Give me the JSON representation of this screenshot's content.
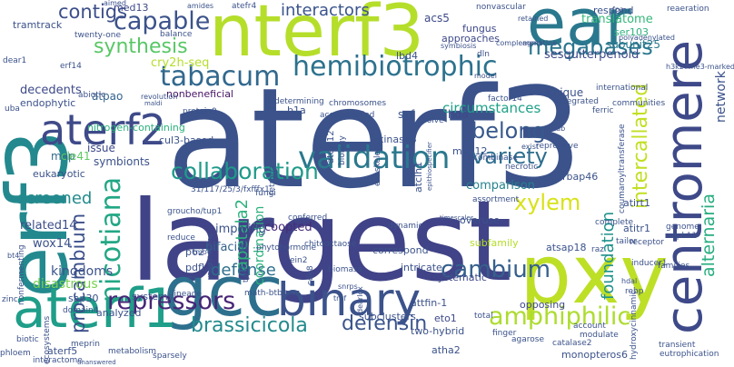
{
  "words": [
    {
      "text": "aterf3",
      "color": "#3b528b"
    },
    {
      "text": "largest",
      "color": "#404387"
    },
    {
      "text": "erf3",
      "color": "#23898e"
    },
    {
      "text": "nterf3",
      "color": "#b5de2b"
    },
    {
      "text": "centromere",
      "color": "#3e4989"
    },
    {
      "text": "pxy",
      "color": "#bddf26"
    },
    {
      "text": "binary",
      "color": "#3b528b"
    },
    {
      "text": "gcc",
      "color": "#2d708e"
    },
    {
      "text": "ear",
      "color": "#2a788e"
    },
    {
      "text": "aterf1",
      "color": "#1f9e89"
    },
    {
      "text": "aterf2",
      "color": "#3e4a89"
    },
    {
      "text": "validation",
      "color": "#2a788e"
    },
    {
      "text": "hemibiotrophic",
      "color": "#2c728e"
    },
    {
      "text": "capable",
      "color": "#3b528b"
    },
    {
      "text": "tabacum",
      "color": "#31688e"
    },
    {
      "text": "collaboration",
      "color": "#1f9a8a"
    },
    {
      "text": "nicotiana",
      "color": "#22a785"
    },
    {
      "text": "repressors",
      "color": "#482576"
    },
    {
      "text": "amphiphilic",
      "color": "#addc30"
    },
    {
      "text": "cambium",
      "color": "#35608d"
    },
    {
      "text": "defensin",
      "color": "#3a548c"
    },
    {
      "text": "brassicicola",
      "color": "#238a8d"
    },
    {
      "text": "megabases",
      "color": "#2a768e"
    },
    {
      "text": "intercallated",
      "color": "#c2df23"
    },
    {
      "text": "alternaria",
      "color": "#27ad81"
    },
    {
      "text": "belong",
      "color": "#38588c"
    },
    {
      "text": "variety",
      "color": "#2e6e8e"
    },
    {
      "text": "contigs",
      "color": "#3c4f8a"
    },
    {
      "text": "synthesis",
      "color": "#58c765"
    },
    {
      "text": "xylem",
      "color": "#d8e219"
    },
    {
      "text": "procambium",
      "color": "#3c4f8a"
    },
    {
      "text": "apetala2",
      "color": "#2db27d"
    },
    {
      "text": "screened",
      "color": "#238a8d"
    },
    {
      "text": "defense",
      "color": "#2e6f8e"
    },
    {
      "text": "foundation",
      "color": "#20928c"
    },
    {
      "text": "interactors",
      "color": "#3a548c"
    },
    {
      "text": "network",
      "color": "#3b528b"
    },
    {
      "text": "coordination",
      "color": "#2db27d"
    },
    {
      "text": "cry2h-seq",
      "color": "#b5de2b"
    },
    {
      "text": "comparison",
      "color": "#26828e"
    },
    {
      "text": "circumstances",
      "color": "#1fa188"
    },
    {
      "text": "sesquiterpenoid",
      "color": "#3e4a89"
    },
    {
      "text": "translatome",
      "color": "#35b779"
    },
    {
      "text": "subunit25",
      "color": "#2a788e"
    },
    {
      "text": "kingdoms",
      "color": "#3b528b"
    },
    {
      "text": "disastrous",
      "color": "#7ad151"
    },
    {
      "text": "related14",
      "color": "#3d4d8a"
    },
    {
      "text": "wox14",
      "color": "#3b528b"
    },
    {
      "text": "bifacial",
      "color": "#34618d"
    },
    {
      "text": "implying",
      "color": "#3b528b"
    },
    {
      "text": "coopted",
      "color": "#472c7a"
    },
    {
      "text": "atpao",
      "color": "#33638d"
    },
    {
      "text": "nonbeneficial",
      "color": "#471365"
    },
    {
      "text": "decedents",
      "color": "#3e4989"
    },
    {
      "text": "endophytic",
      "color": "#3b528b"
    },
    {
      "text": "nitrogen-containing",
      "color": "#2db27d"
    },
    {
      "text": "symbionts",
      "color": "#3b528b"
    },
    {
      "text": "issue",
      "color": "#3e4989"
    },
    {
      "text": "map",
      "color": "#31688e"
    },
    {
      "text": "cle41",
      "color": "#5ec962"
    },
    {
      "text": "eukaryotic",
      "color": "#3b528b"
    },
    {
      "text": "cul3-based",
      "color": "#3b528b"
    },
    {
      "text": "med13",
      "color": "#3e4989"
    },
    {
      "text": "snf",
      "color": "#38588c"
    },
    {
      "text": "hda",
      "color": "#3e4989"
    },
    {
      "text": "lbd4",
      "color": "#3b528b"
    },
    {
      "text": "acs5",
      "color": "#3e4989"
    },
    {
      "text": "atclh1",
      "color": "#3b528b"
    },
    {
      "text": "kinase8",
      "color": "#3b528b"
    },
    {
      "text": "med12",
      "color": "#3b528b"
    },
    {
      "text": "approaches",
      "color": "#3e4989"
    },
    {
      "text": "fungus",
      "color": "#3e4989"
    },
    {
      "text": "respond",
      "color": "#3b528b"
    },
    {
      "text": "ser103",
      "color": "#2db27d"
    },
    {
      "text": "unique",
      "color": "#3b528b"
    },
    {
      "text": "atirt1",
      "color": "#3b528b"
    },
    {
      "text": "atitr1",
      "color": "#3b528b"
    },
    {
      "text": "atsap18",
      "color": "#3b528b"
    },
    {
      "text": "rbap46",
      "color": "#3b528b"
    },
    {
      "text": "subfamily",
      "color": "#b5de2b"
    },
    {
      "text": "overuse",
      "color": "#3b528b"
    },
    {
      "text": "correspond",
      "color": "#3b528b"
    },
    {
      "text": "intricate",
      "color": "#3b528b"
    },
    {
      "text": "systematic",
      "color": "#3e4989"
    },
    {
      "text": "opposing",
      "color": "#3e4989"
    },
    {
      "text": "two-hybrid",
      "color": "#3b528b"
    },
    {
      "text": "eto1",
      "color": "#3e4989"
    },
    {
      "text": "atha2",
      "color": "#3b528b"
    },
    {
      "text": "monopteros6",
      "color": "#3b528b"
    },
    {
      "text": "subclusters",
      "color": "#3b528b"
    },
    {
      "text": "attfin-1",
      "color": "#3b528b"
    },
    {
      "text": "p62",
      "color": "#3b528b"
    },
    {
      "text": "pdfl.2",
      "color": "#3b528b"
    },
    {
      "text": "systems",
      "color": "#3b528b"
    },
    {
      "text": "sap30",
      "color": "#3b528b"
    },
    {
      "text": "analyzed",
      "color": "#3b528b"
    },
    {
      "text": "aterf5",
      "color": "#3b528b"
    },
    {
      "text": "tramtrack",
      "color": "#3b528b"
    },
    {
      "text": "twenty-one",
      "color": "#3b528b"
    },
    {
      "text": "balance",
      "color": "#3b528b"
    },
    {
      "text": "atefr4",
      "color": "#3b528b"
    },
    {
      "text": "nonvascular",
      "color": "#3b528b"
    },
    {
      "text": "communities",
      "color": "#3b528b"
    },
    {
      "text": "reaeration",
      "color": "#3b528b"
    },
    {
      "text": "protein9",
      "color": "#3b528b"
    },
    {
      "text": "accompanied",
      "color": "#3b528b"
    },
    {
      "text": "biology",
      "color": "#3b528b"
    },
    {
      "text": "exoskeleton",
      "color": "#3b528b"
    },
    {
      "text": "recombinase",
      "color": "#3b528b"
    },
    {
      "text": "coumaroyltransferase",
      "color": "#3b528b"
    },
    {
      "text": "dynamic",
      "color": "#3b528b"
    },
    {
      "text": "tailor",
      "color": "#3b528b"
    },
    {
      "text": "rebp",
      "color": "#3b528b"
    },
    {
      "text": "total",
      "color": "#3b528b"
    },
    {
      "text": "finger",
      "color": "#3b528b"
    },
    {
      "text": "agarose",
      "color": "#3b528b"
    },
    {
      "text": "modulate",
      "color": "#3b528b"
    },
    {
      "text": "eutrophication",
      "color": "#3b528b"
    },
    {
      "text": "transient",
      "color": "#3b528b"
    },
    {
      "text": "interactome",
      "color": "#3b528b"
    },
    {
      "text": "biotic",
      "color": "#3b528b"
    },
    {
      "text": "zinc",
      "color": "#3b528b"
    },
    {
      "text": "dear1",
      "color": "#3b528b"
    },
    {
      "text": "erf14",
      "color": "#3b528b"
    },
    {
      "text": "abiotic",
      "color": "#3b528b"
    },
    {
      "text": "uba",
      "color": "#3b528b"
    },
    {
      "text": "determining",
      "color": "#3b528b"
    },
    {
      "text": "chromosomes",
      "color": "#3b528b"
    },
    {
      "text": "factor14",
      "color": "#3b528b"
    },
    {
      "text": "integrated",
      "color": "#3b528b"
    },
    {
      "text": "international",
      "color": "#3b528b"
    },
    {
      "text": "h3k27me3-marked",
      "color": "#3b528b"
    },
    {
      "text": "solve",
      "color": "#3b528b"
    },
    {
      "text": "ferric",
      "color": "#3b528b"
    },
    {
      "text": "necrotic",
      "color": "#3b528b"
    },
    {
      "text": "repressive",
      "color": "#3b528b"
    },
    {
      "text": "complete",
      "color": "#3b528b"
    },
    {
      "text": "genome",
      "color": "#3b528b"
    },
    {
      "text": "mpk11",
      "color": "#3b528b"
    },
    {
      "text": "families",
      "color": "#3b528b"
    },
    {
      "text": "inducer1",
      "color": "#3b528b"
    },
    {
      "text": "receptor",
      "color": "#3b528b"
    },
    {
      "text": "assortment",
      "color": "#3b528b"
    },
    {
      "text": "conferred",
      "color": "#3b528b"
    },
    {
      "text": "fungi",
      "color": "#3b528b"
    },
    {
      "text": "chitooctaose",
      "color": "#3b528b"
    },
    {
      "text": "reduce",
      "color": "#3b528b"
    },
    {
      "text": "phytohormone",
      "color": "#3b528b"
    },
    {
      "text": "ein2",
      "color": "#3b528b"
    },
    {
      "text": "biomass",
      "color": "#3b528b"
    },
    {
      "text": "cdk8",
      "color": "#3b528b"
    },
    {
      "text": "math-btb/poz",
      "color": "#3b528b"
    },
    {
      "text": "lineage",
      "color": "#3b528b"
    },
    {
      "text": "metabolism",
      "color": "#3b528b"
    },
    {
      "text": "meprin",
      "color": "#3b528b"
    },
    {
      "text": "sparsely",
      "color": "#3b528b"
    },
    {
      "text": "account",
      "color": "#3b528b"
    },
    {
      "text": "catalase2",
      "color": "#3b528b"
    },
    {
      "text": "hydroxycinnamic",
      "color": "#3b528b"
    },
    {
      "text": "ecosystems",
      "color": "#3b528b"
    },
    {
      "text": "nonfermenting",
      "color": "#3b528b"
    },
    {
      "text": "phloem",
      "color": "#3b528b"
    },
    {
      "text": "unanswered",
      "color": "#3b528b"
    },
    {
      "text": "domain4",
      "color": "#3b528b"
    },
    {
      "text": "groucho/tup1",
      "color": "#3b528b"
    },
    {
      "text": "retrotransposons",
      "color": "#3b528b"
    },
    {
      "text": "31/117/25/3/fxfffx1",
      "color": "#3b528b"
    },
    {
      "text": "maldi",
      "color": "#3b528b"
    },
    {
      "text": "revolution",
      "color": "#3b528b"
    },
    {
      "text": "amides",
      "color": "#3b528b"
    },
    {
      "text": "aimed",
      "color": "#3b528b"
    },
    {
      "text": "symbiosis",
      "color": "#3b528b"
    },
    {
      "text": "retained",
      "color": "#3b528b"
    },
    {
      "text": "complement",
      "color": "#3b528b"
    },
    {
      "text": "agmatine",
      "color": "#3b528b"
    },
    {
      "text": "polyadenylated",
      "color": "#3b528b"
    },
    {
      "text": "dln",
      "color": "#3b528b"
    },
    {
      "text": "model",
      "color": "#3b528b"
    },
    {
      "text": "aterf7",
      "color": "#3b528b"
    },
    {
      "text": "aterf12",
      "color": "#3b528b"
    },
    {
      "text": "b1a",
      "color": "#3b528b"
    },
    {
      "text": "en",
      "color": "#3b528b"
    },
    {
      "text": "tmo6",
      "color": "#3b528b"
    },
    {
      "text": "bt4",
      "color": "#3b528b"
    },
    {
      "text": "traf",
      "color": "#3b528b"
    },
    {
      "text": "snrps",
      "color": "#3b528b"
    },
    {
      "text": "dearlox",
      "color": "#3b528b"
    },
    {
      "text": "timescales",
      "color": "#3b528b"
    },
    {
      "text": "understanding",
      "color": "#3b528b"
    },
    {
      "text": "tyr",
      "color": "#3b528b"
    },
    {
      "text": "hdal",
      "color": "#3b528b"
    },
    {
      "text": "raz",
      "color": "#3b528b"
    },
    {
      "text": "exist",
      "color": "#3b528b"
    },
    {
      "text": "epithiospecifier",
      "color": "#3b528b"
    },
    {
      "text": "ub",
      "color": "#3b528b"
    },
    {
      "text": "fpa",
      "color": "#3b528b"
    }
  ]
}
